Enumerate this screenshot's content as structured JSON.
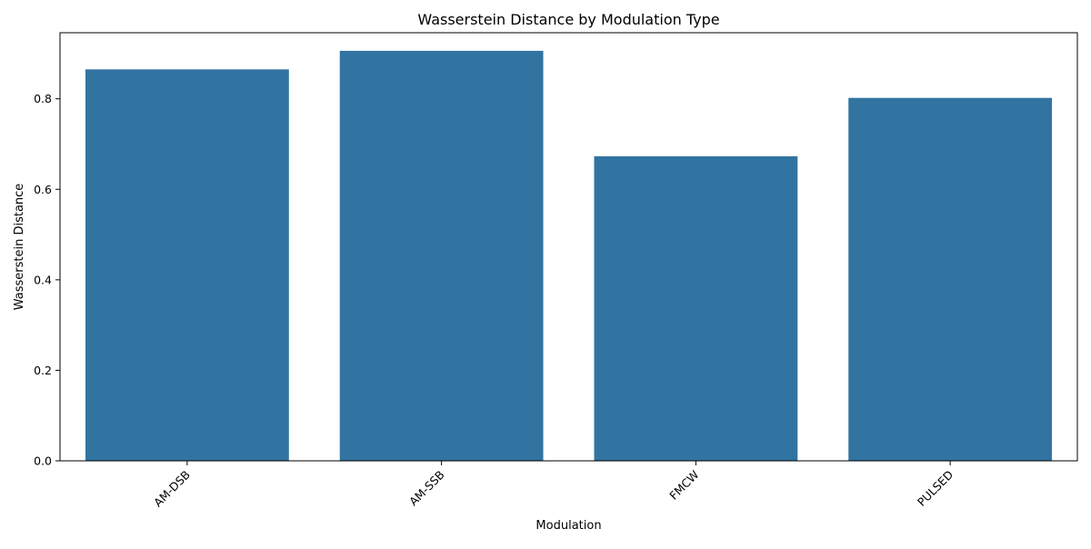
{
  "chart_data": {
    "type": "bar",
    "title": "Wasserstein Distance by Modulation Type",
    "xlabel": "Modulation",
    "ylabel": "Wasserstein Distance",
    "categories": [
      "AM-DSB",
      "AM-SSB",
      "FMCW",
      "PULSED"
    ],
    "values": [
      0.865,
      0.906,
      0.673,
      0.802
    ],
    "ylim": [
      0,
      0.946
    ],
    "yticks": [
      "0.0",
      "0.2",
      "0.4",
      "0.6",
      "0.8"
    ],
    "bar_color": "#3274a1",
    "grid": false,
    "legend": "none"
  }
}
